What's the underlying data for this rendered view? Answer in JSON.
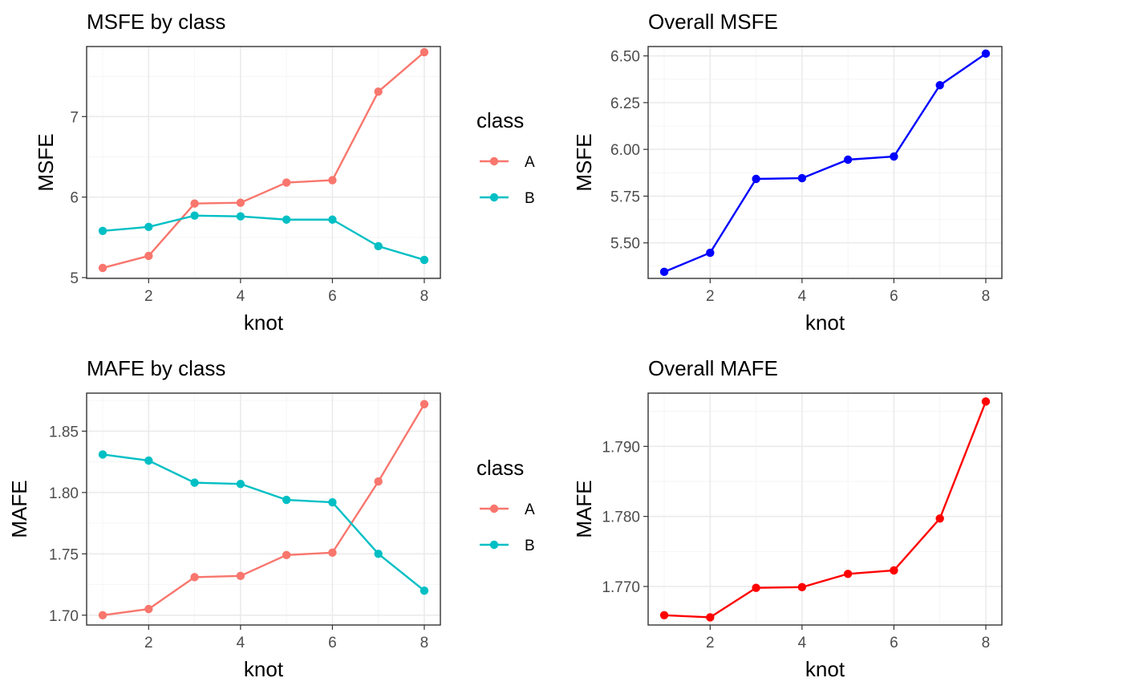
{
  "chart_data": [
    {
      "type": "line",
      "title": "MSFE by class",
      "xlabel": "knot",
      "ylabel": "MSFE",
      "x": [
        1,
        2,
        3,
        4,
        5,
        6,
        7,
        8
      ],
      "xlim": [
        0.65,
        8.35
      ],
      "ylim": [
        4.99,
        7.87
      ],
      "xticks": [
        2,
        4,
        6,
        8
      ],
      "xtick_labels": [
        "2",
        "4",
        "6",
        "8"
      ],
      "yticks": [
        5,
        6,
        7
      ],
      "ytick_labels": [
        "5",
        "6",
        "7"
      ],
      "grid": true,
      "legend": {
        "title": "class",
        "position": "right"
      },
      "series": [
        {
          "name": "A",
          "color": "#F8766D",
          "values": [
            5.12,
            5.27,
            5.92,
            5.93,
            6.18,
            6.21,
            7.31,
            7.8
          ]
        },
        {
          "name": "B",
          "color": "#00BFC4",
          "values": [
            5.58,
            5.63,
            5.77,
            5.76,
            5.72,
            5.72,
            5.39,
            5.22
          ]
        }
      ]
    },
    {
      "type": "line",
      "title": "Overall MSFE",
      "xlabel": "knot",
      "ylabel": "MSFE",
      "x": [
        1,
        2,
        3,
        4,
        5,
        6,
        7,
        8
      ],
      "xlim": [
        0.65,
        8.35
      ],
      "ylim": [
        5.31,
        6.55
      ],
      "xticks": [
        2,
        4,
        6,
        8
      ],
      "xtick_labels": [
        "2",
        "4",
        "6",
        "8"
      ],
      "yticks": [
        5.5,
        5.75,
        6.0,
        6.25,
        6.5
      ],
      "ytick_labels": [
        "5.50",
        "5.75",
        "6.00",
        "6.25",
        "6.50"
      ],
      "grid": true,
      "series": [
        {
          "color": "#0000FF",
          "values": [
            5.345,
            5.447,
            5.842,
            5.846,
            5.945,
            5.962,
            6.343,
            6.512
          ]
        }
      ]
    },
    {
      "type": "line",
      "title": "MAFE by class",
      "xlabel": "knot",
      "ylabel": "MAFE",
      "x": [
        1,
        2,
        3,
        4,
        5,
        6,
        7,
        8
      ],
      "xlim": [
        0.65,
        8.35
      ],
      "ylim": [
        1.692,
        1.881
      ],
      "xticks": [
        2,
        4,
        6,
        8
      ],
      "xtick_labels": [
        "2",
        "4",
        "6",
        "8"
      ],
      "yticks": [
        1.7,
        1.75,
        1.8,
        1.85
      ],
      "ytick_labels": [
        "1.70",
        "1.75",
        "1.80",
        "1.85"
      ],
      "grid": true,
      "legend": {
        "title": "class",
        "position": "right"
      },
      "series": [
        {
          "name": "A",
          "color": "#F8766D",
          "values": [
            1.7,
            1.705,
            1.731,
            1.732,
            1.749,
            1.751,
            1.809,
            1.872
          ]
        },
        {
          "name": "B",
          "color": "#00BFC4",
          "values": [
            1.831,
            1.826,
            1.808,
            1.807,
            1.794,
            1.792,
            1.75,
            1.72
          ]
        }
      ]
    },
    {
      "type": "line",
      "title": "Overall MAFE",
      "xlabel": "knot",
      "ylabel": "MAFE",
      "x": [
        1,
        2,
        3,
        4,
        5,
        6,
        7,
        8
      ],
      "xlim": [
        0.65,
        8.35
      ],
      "ylim": [
        1.7645,
        1.7976
      ],
      "xticks": [
        2,
        4,
        6,
        8
      ],
      "xtick_labels": [
        "2",
        "4",
        "6",
        "8"
      ],
      "yticks": [
        1.77,
        1.78,
        1.79
      ],
      "ytick_labels": [
        "1.770",
        "1.780",
        "1.790"
      ],
      "grid": true,
      "series": [
        {
          "color": "#FF0000",
          "values": [
            1.7659,
            1.7656,
            1.7698,
            1.7699,
            1.7718,
            1.7723,
            1.7797,
            1.7964
          ]
        }
      ]
    }
  ]
}
